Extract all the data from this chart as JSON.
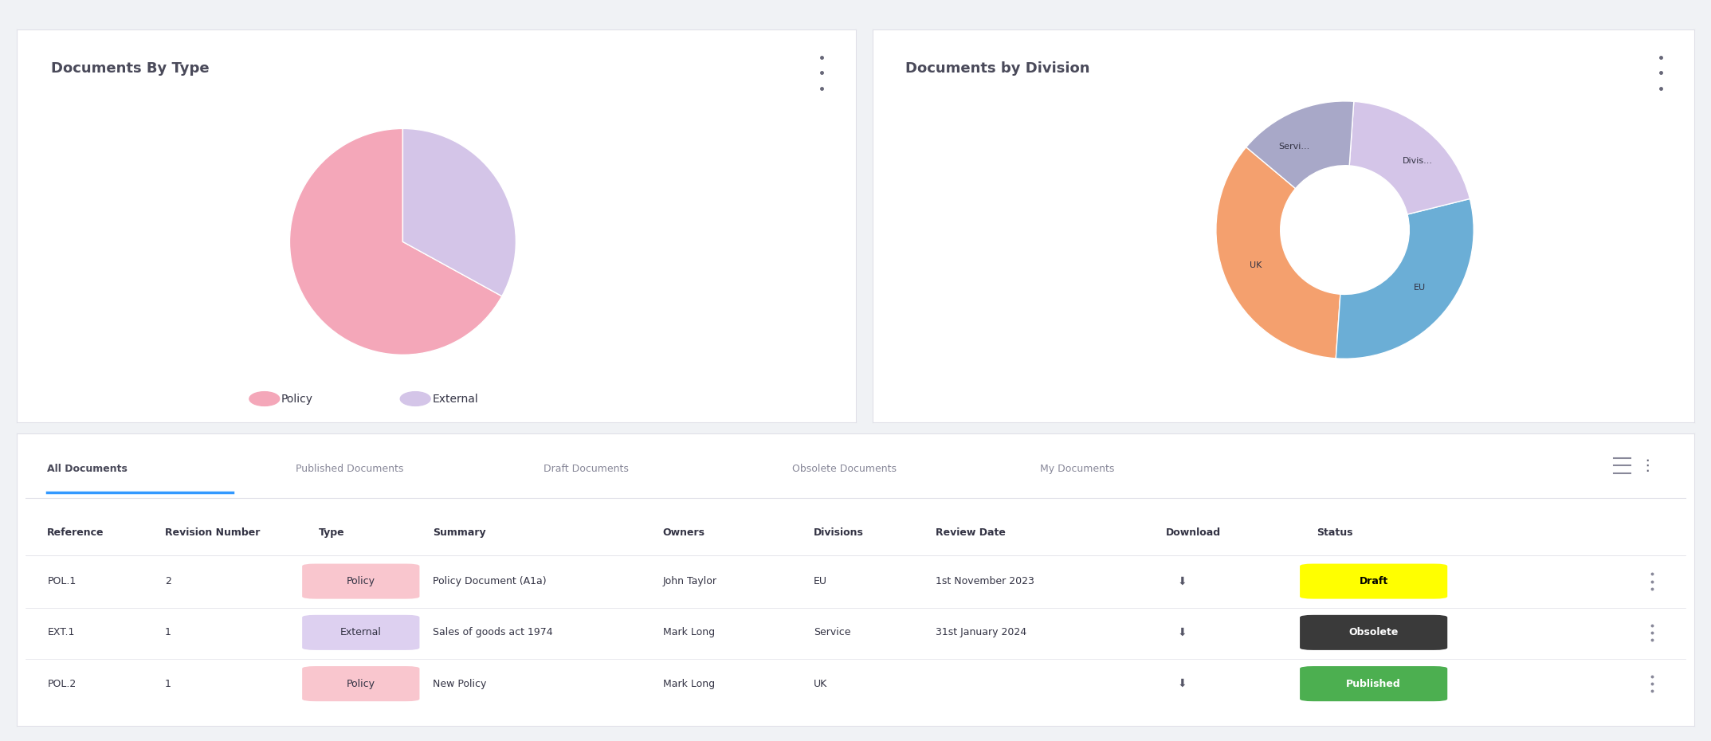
{
  "bg_color": "#f0f2f5",
  "card_color": "#ffffff",
  "title_color": "#4a4a5a",
  "text_color": "#333344",
  "light_text": "#888899",
  "border_color": "#e0e0e8",
  "chart1_title": "Documents By Type",
  "chart1_slices": [
    0.67,
    0.33
  ],
  "chart1_colors": [
    "#f4a7b9",
    "#d4c5e8"
  ],
  "chart1_labels": [
    "Policy",
    "External"
  ],
  "chart2_title": "Documents by Division",
  "chart2_slices": [
    0.35,
    0.3,
    0.2,
    0.15
  ],
  "chart2_colors": [
    "#f4a06e",
    "#6baed6",
    "#d4c5e8",
    "#a8a8c8"
  ],
  "chart2_labels": [
    "UK",
    "EU",
    "Divis...",
    "Servi..."
  ],
  "tabs": [
    "All Documents",
    "Published Documents",
    "Draft Documents",
    "Obsolete Documents",
    "My Documents"
  ],
  "active_tab": "All Documents",
  "tab_underline_color": "#3399ff",
  "table_headers": [
    "Reference",
    "Revision Number",
    "Type",
    "Summary",
    "Owners",
    "Divisions",
    "Review Date",
    "Download",
    "Status"
  ],
  "table_rows": [
    [
      "POL.1",
      "2",
      "Policy",
      "Policy Document (A1a)",
      "John Taylor",
      "EU",
      "1st November 2023",
      "↓",
      "Draft"
    ],
    [
      "EXT.1",
      "1",
      "External",
      "Sales of goods act 1974",
      "Mark Long",
      "Service",
      "31st January 2024",
      "↓",
      "Obsolete"
    ],
    [
      "POL.2",
      "1",
      "Policy",
      "New Policy",
      "Mark Long",
      "UK",
      "",
      "↓",
      "Published"
    ]
  ],
  "type_colors": {
    "Policy": "#f9c6ce",
    "External": "#ddd0f0"
  },
  "status_colors": {
    "Draft": "#ffff00",
    "Obsolete": "#3a3a3a",
    "Published": "#4caf50"
  },
  "status_text_colors": {
    "Draft": "#000000",
    "Obsolete": "#ffffff",
    "Published": "#ffffff"
  },
  "header_font_size": 9,
  "row_font_size": 9,
  "tab_font_size": 9
}
